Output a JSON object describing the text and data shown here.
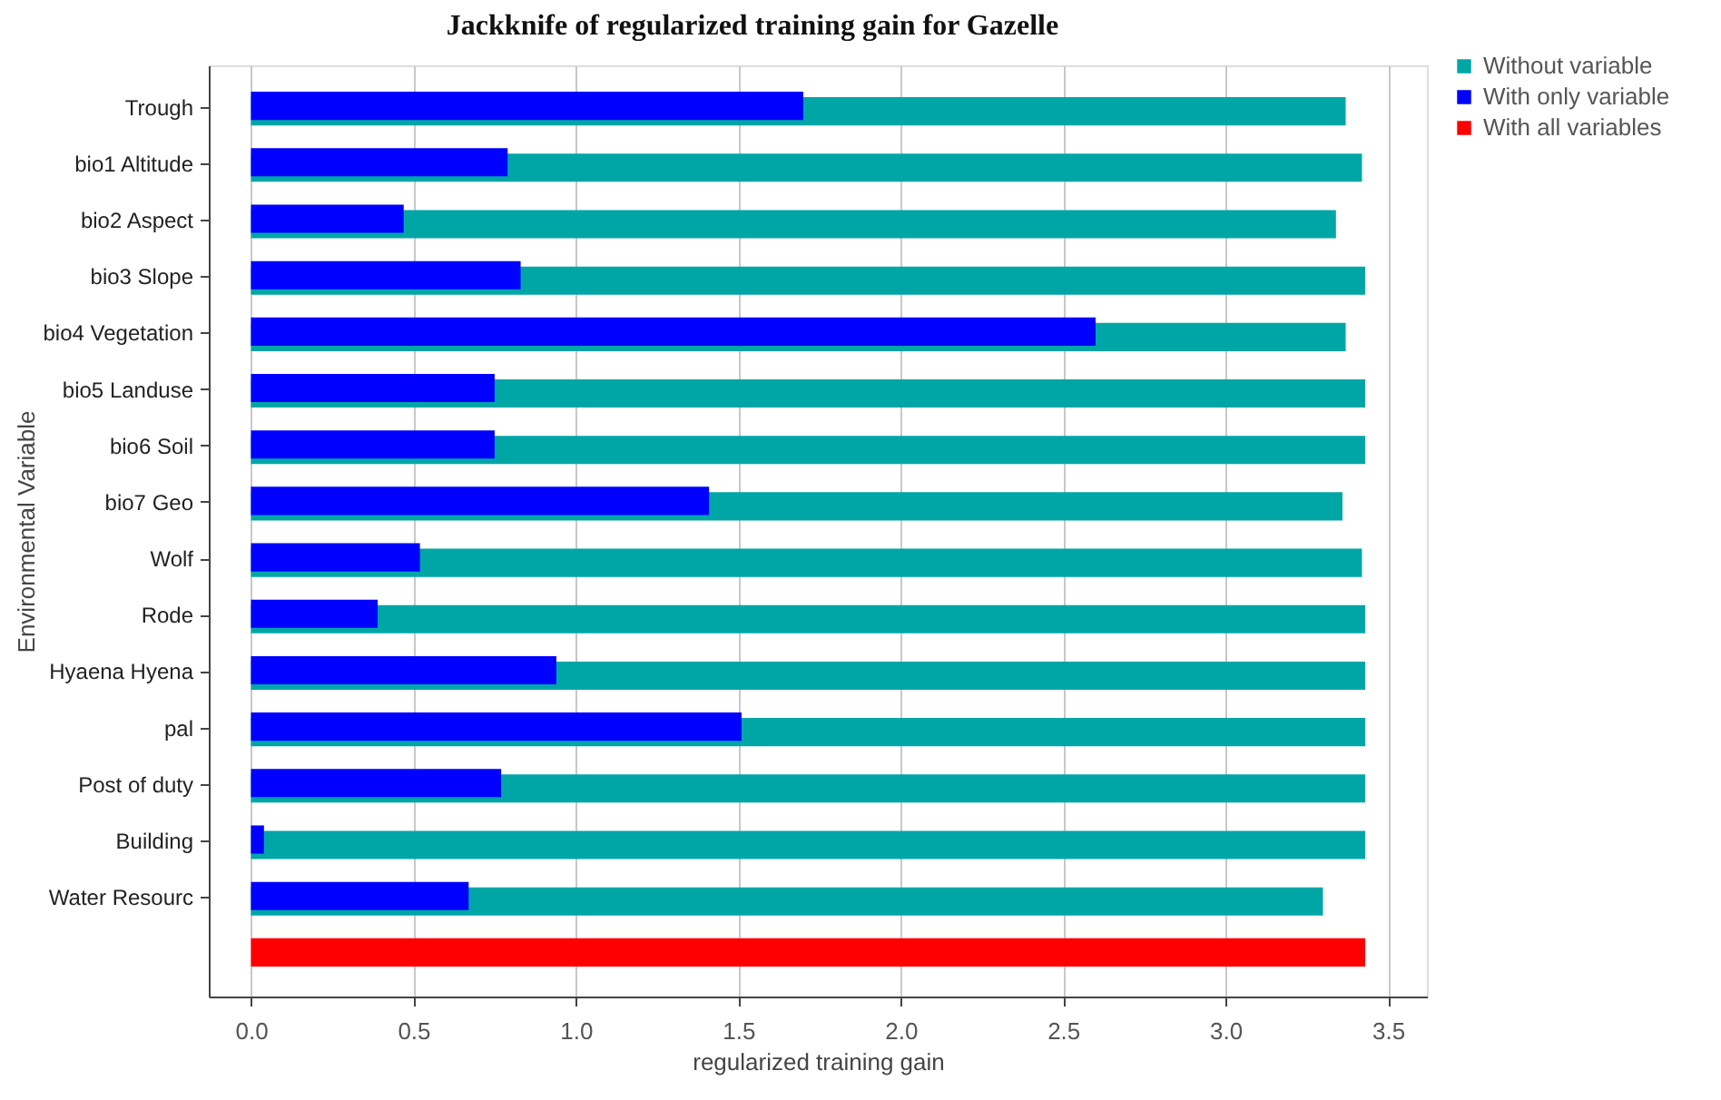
{
  "chart_data": {
    "type": "bar",
    "orientation": "horizontal",
    "title": "Jackknife of regularized training gain for Gazelle",
    "xlabel": "regularized training gain",
    "ylabel": "Environmental Variable",
    "categories": [
      "Trough",
      "bio1 Altitude",
      "bio2 Aspect",
      "bio3 Slope",
      "bio4 Vegetation",
      "bio5 Landuse",
      "bio6 Soil",
      "bio7 Geo",
      "Wolf",
      "Rode",
      "Hyaena Hyena",
      "pal",
      "Post of duty",
      "Building",
      "Water Resourc",
      null
    ],
    "series": [
      {
        "name": "Without variable",
        "color": "#00a6a6",
        "values": [
          3.37,
          3.42,
          3.34,
          3.43,
          3.37,
          3.43,
          3.43,
          3.36,
          3.42,
          3.43,
          3.43,
          3.43,
          3.43,
          3.43,
          3.3,
          null
        ]
      },
      {
        "name": "With only variable",
        "color": "#0000ff",
        "values": [
          1.7,
          0.79,
          0.47,
          0.83,
          2.6,
          0.75,
          0.75,
          1.41,
          0.52,
          0.39,
          0.94,
          1.51,
          0.77,
          0.04,
          0.67,
          null
        ]
      },
      {
        "name": "With all variables",
        "color": "#ff0000",
        "values": [
          null,
          null,
          null,
          null,
          null,
          null,
          null,
          null,
          null,
          null,
          null,
          null,
          null,
          null,
          null,
          3.43
        ]
      }
    ],
    "xlim": [
      -0.13,
      3.62
    ],
    "xticks": [
      {
        "value": 0,
        "label": "0.0"
      },
      0.5,
      {
        "value": 1,
        "label": "1.0"
      },
      1.5,
      {
        "value": 2,
        "label": "2.0"
      },
      2.5,
      {
        "value": 3,
        "label": "3.0"
      },
      3.5
    ],
    "grid": "x",
    "legend": "top right"
  }
}
